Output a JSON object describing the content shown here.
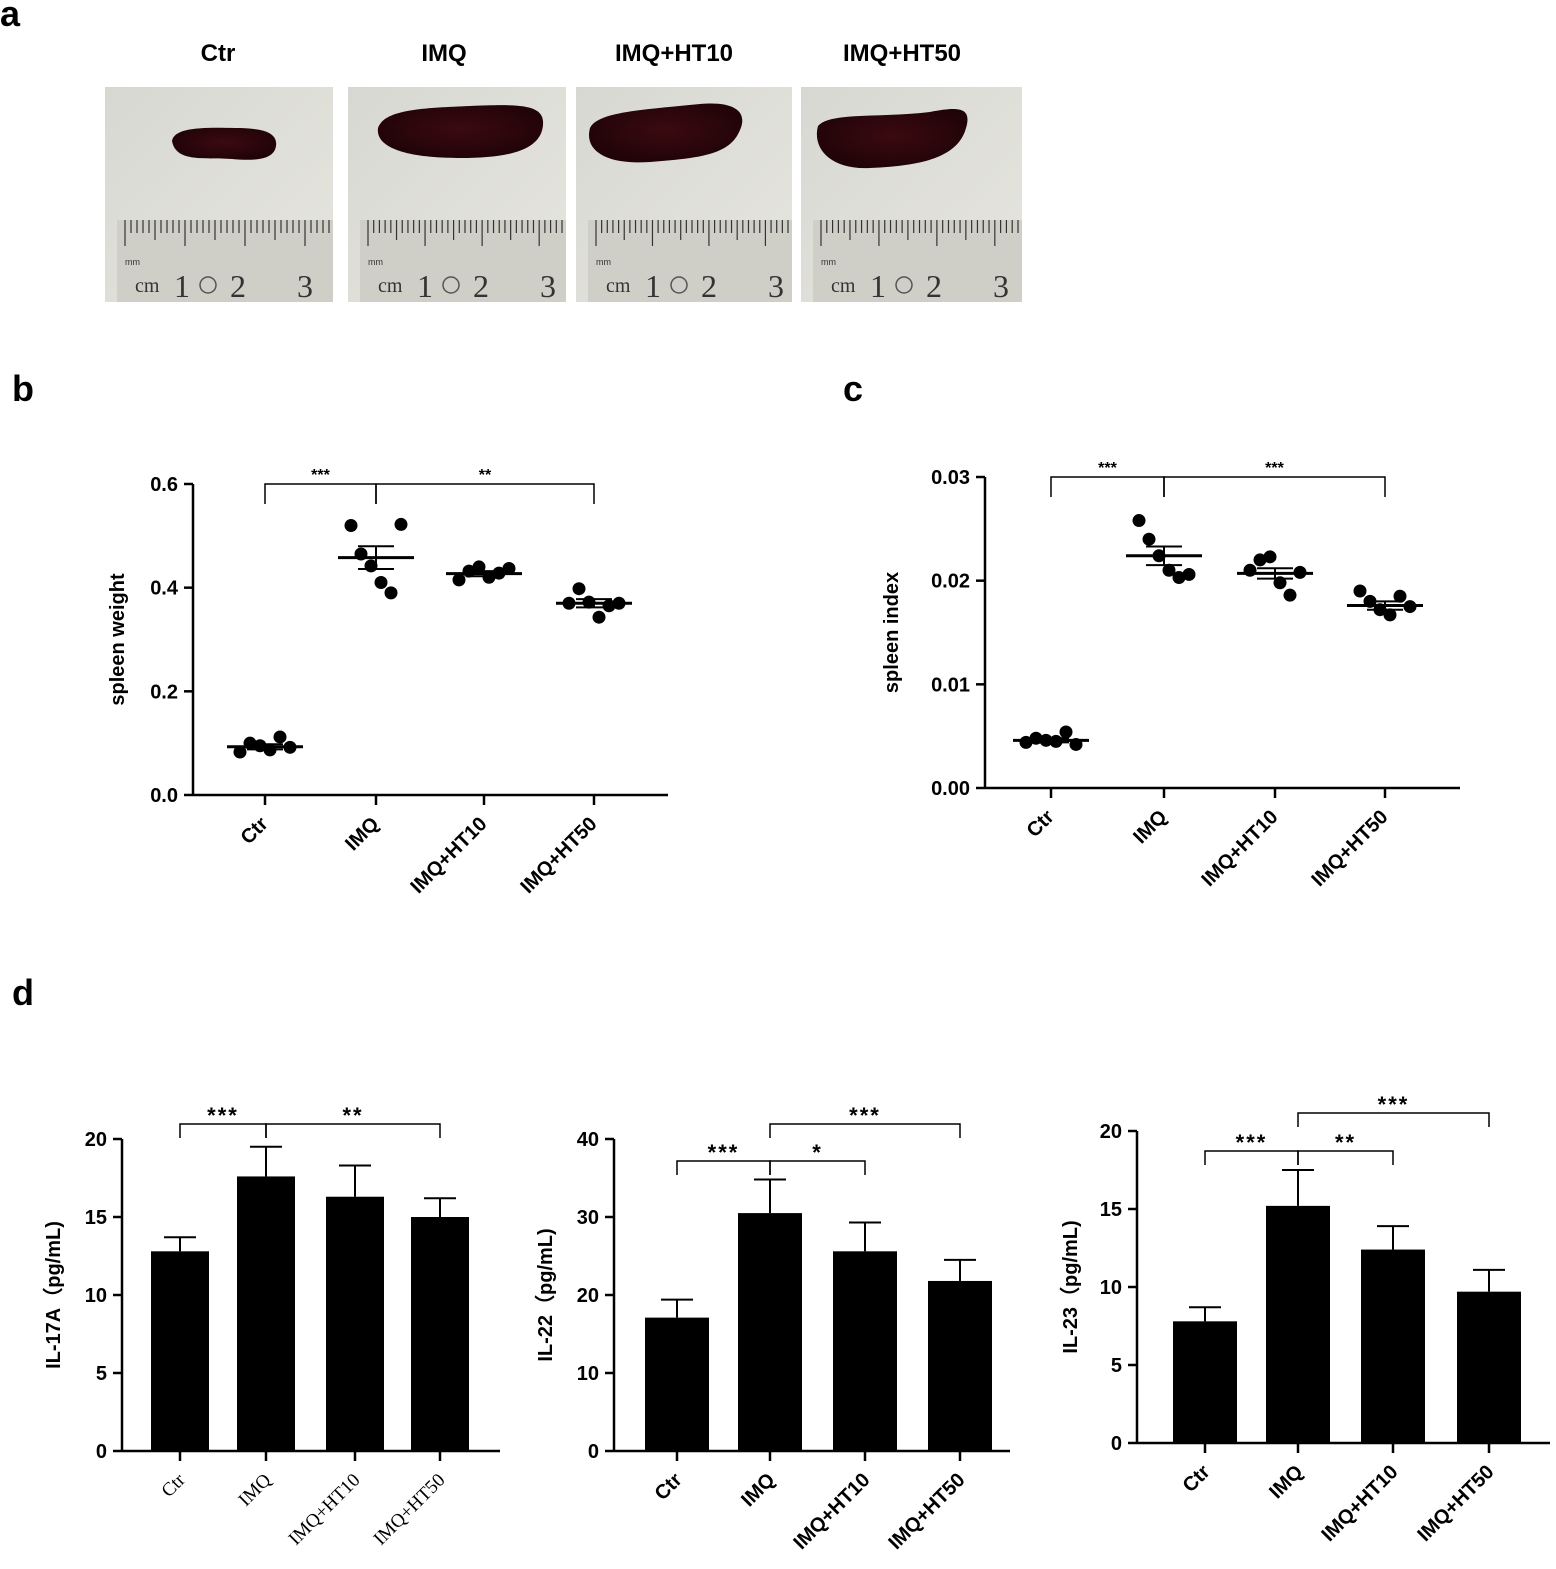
{
  "panel_a": {
    "letter": "a",
    "titles": [
      "Ctr",
      "IMQ",
      "IMQ+HT10",
      "IMQ+HT50"
    ],
    "ruler": {
      "unit": "cm",
      "mm": "mm",
      "numbers": [
        "1",
        "2",
        "3"
      ]
    }
  },
  "chart_data": [
    {
      "panel": "b",
      "type": "scatter",
      "ylabel": "spleen weight",
      "xlabel": "",
      "categories": [
        "Ctr",
        "IMQ",
        "IMQ+HT10",
        "IMQ+HT50"
      ],
      "points": [
        [
          0.083,
          0.1,
          0.095,
          0.087,
          0.112,
          0.092
        ],
        [
          0.52,
          0.465,
          0.442,
          0.41,
          0.39,
          0.522
        ],
        [
          0.415,
          0.432,
          0.44,
          0.42,
          0.428,
          0.437
        ],
        [
          0.37,
          0.398,
          0.372,
          0.343,
          0.365,
          0.37
        ]
      ],
      "mean": [
        0.093,
        0.458,
        0.427,
        0.37
      ],
      "sem": [
        0.005,
        0.022,
        0.005,
        0.008
      ],
      "ylim": [
        0,
        0.6
      ],
      "yticks": [
        "0.0",
        "0.2",
        "0.4",
        "0.6"
      ],
      "significance": [
        {
          "from": 0,
          "to": 1,
          "label": "***"
        },
        {
          "from": 1,
          "to": 3,
          "label": "**"
        }
      ]
    },
    {
      "panel": "c",
      "type": "scatter",
      "ylabel": "spleen index",
      "xlabel": "",
      "categories": [
        "Ctr",
        "IMQ",
        "IMQ+HT10",
        "IMQ+HT50"
      ],
      "points": [
        [
          0.0044,
          0.0048,
          0.0046,
          0.0045,
          0.0054,
          0.0042
        ],
        [
          0.0258,
          0.024,
          0.0224,
          0.021,
          0.0203,
          0.0206
        ],
        [
          0.021,
          0.022,
          0.0223,
          0.0198,
          0.0186,
          0.0208
        ],
        [
          0.019,
          0.018,
          0.0172,
          0.0167,
          0.0185,
          0.0175
        ]
      ],
      "mean": [
        0.0046,
        0.0224,
        0.0207,
        0.0176
      ],
      "sem": [
        0.0002,
        0.0009,
        0.0005,
        0.0004
      ],
      "ylim": [
        0,
        0.03
      ],
      "yticks": [
        "0.00",
        "0.01",
        "0.02",
        "0.03"
      ],
      "significance": [
        {
          "from": 0,
          "to": 1,
          "label": "***"
        },
        {
          "from": 1,
          "to": 3,
          "label": "***"
        }
      ]
    },
    {
      "panel": "d1",
      "type": "bar",
      "ylabel": "IL-17A（pg/mL)",
      "xlabel": "",
      "categories": [
        "Ctr",
        "IMQ",
        "IMQ+HT10",
        "IMQ+HT50"
      ],
      "values": [
        12.8,
        17.6,
        16.3,
        15.0
      ],
      "errors": [
        0.9,
        1.9,
        2.0,
        1.2
      ],
      "ylim": [
        0,
        20
      ],
      "yticks": [
        "0",
        "5",
        "10",
        "15",
        "20"
      ],
      "significance": [
        {
          "from": 0,
          "to": 1,
          "label": "***",
          "level": 0
        },
        {
          "from": 1,
          "to": 3,
          "label": "**",
          "level": 0
        }
      ]
    },
    {
      "panel": "d2",
      "type": "bar",
      "ylabel": "IL-22（pg/mL)",
      "xlabel": "",
      "categories": [
        "Ctr",
        "IMQ",
        "IMQ+HT10",
        "IMQ+HT50"
      ],
      "values": [
        17.1,
        30.5,
        25.6,
        21.8
      ],
      "errors": [
        2.3,
        4.3,
        3.7,
        2.7
      ],
      "ylim": [
        0,
        40
      ],
      "yticks": [
        "0",
        "10",
        "20",
        "30",
        "40"
      ],
      "significance": [
        {
          "from": 0,
          "to": 1,
          "label": "***",
          "level": 0
        },
        {
          "from": 1,
          "to": 2,
          "label": "*",
          "level": 0
        },
        {
          "from": 1,
          "to": 3,
          "label": "***",
          "level": 1
        }
      ]
    },
    {
      "panel": "d3",
      "type": "bar",
      "ylabel": "IL-23（pg/mL)",
      "xlabel": "",
      "categories": [
        "Ctr",
        "IMQ",
        "IMQ+HT10",
        "IMQ+HT50"
      ],
      "values": [
        7.8,
        15.2,
        12.4,
        9.7
      ],
      "errors": [
        0.9,
        2.3,
        1.5,
        1.4
      ],
      "ylim": [
        0,
        20
      ],
      "yticks": [
        "0",
        "5",
        "10",
        "15",
        "20"
      ],
      "significance": [
        {
          "from": 0,
          "to": 1,
          "label": "***",
          "level": 0
        },
        {
          "from": 1,
          "to": 2,
          "label": "**",
          "level": 0
        },
        {
          "from": 1,
          "to": 3,
          "label": "***",
          "level": 1
        }
      ]
    }
  ],
  "letters": {
    "b": "b",
    "c": "c",
    "d": "d"
  },
  "colors": {
    "ink": "#000000",
    "spleen": "#2a0508",
    "background_photo": "#d9dad3",
    "ruler": "#cfcfc8"
  }
}
